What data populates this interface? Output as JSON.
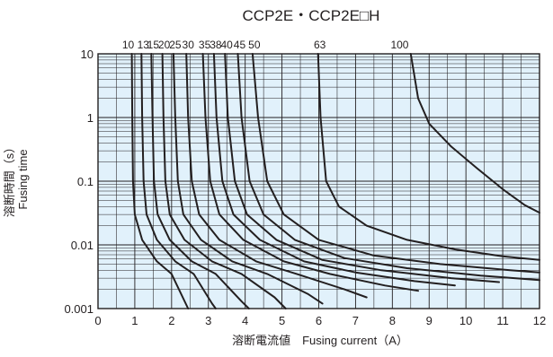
{
  "chart_data": {
    "type": "line",
    "title": "CCP2E・CCP2E□H",
    "xlabel": "溶断電流値　Fusing current（A）",
    "ylabel_ja": "溶断時間（s）",
    "ylabel_en": "Fusing time",
    "xlim": [
      0,
      12
    ],
    "ylim": [
      0.001,
      10
    ],
    "yscale": "log",
    "x_ticks": [
      "0",
      "1",
      "2",
      "3",
      "4",
      "5",
      "6",
      "7",
      "8",
      "9",
      "10",
      "11",
      "12"
    ],
    "y_ticks": [
      "0.001",
      "0.01",
      "0.1",
      "1",
      "10"
    ],
    "grid": true,
    "plot_background": "#e1f1fb",
    "line_color": "#231f20",
    "series": [
      {
        "name": "10",
        "points": [
          [
            0.92,
            10
          ],
          [
            0.93,
            1
          ],
          [
            0.95,
            0.1
          ],
          [
            1.0,
            0.03
          ],
          [
            1.2,
            0.012
          ],
          [
            1.6,
            0.0055
          ],
          [
            2.0,
            0.0035
          ],
          [
            2.45,
            0.001
          ]
        ]
      },
      {
        "name": "13",
        "points": [
          [
            1.18,
            10
          ],
          [
            1.2,
            1
          ],
          [
            1.24,
            0.1
          ],
          [
            1.32,
            0.03
          ],
          [
            1.6,
            0.012
          ],
          [
            2.1,
            0.0055
          ],
          [
            2.6,
            0.0035
          ],
          [
            3.1,
            0.0012
          ],
          [
            3.2,
            0.001
          ]
        ]
      },
      {
        "name": "15",
        "points": [
          [
            1.45,
            10
          ],
          [
            1.48,
            1
          ],
          [
            1.52,
            0.1
          ],
          [
            1.62,
            0.03
          ],
          [
            1.95,
            0.012
          ],
          [
            2.55,
            0.0055
          ],
          [
            3.2,
            0.0035
          ],
          [
            3.9,
            0.0013
          ],
          [
            4.1,
            0.001
          ]
        ]
      },
      {
        "name": "20",
        "points": [
          [
            1.75,
            10
          ],
          [
            1.78,
            1
          ],
          [
            1.83,
            0.1
          ],
          [
            1.95,
            0.03
          ],
          [
            2.35,
            0.012
          ],
          [
            3.1,
            0.0055
          ],
          [
            3.9,
            0.0035
          ],
          [
            4.8,
            0.0015
          ],
          [
            5.1,
            0.001
          ]
        ]
      },
      {
        "name": "25",
        "points": [
          [
            2.05,
            10
          ],
          [
            2.1,
            1
          ],
          [
            2.17,
            0.1
          ],
          [
            2.32,
            0.03
          ],
          [
            2.8,
            0.012
          ],
          [
            3.65,
            0.0055
          ],
          [
            4.6,
            0.0035
          ],
          [
            5.7,
            0.0017
          ],
          [
            6.1,
            0.0012
          ]
        ]
      },
      {
        "name": "30",
        "points": [
          [
            2.4,
            10
          ],
          [
            2.45,
            1
          ],
          [
            2.55,
            0.1
          ],
          [
            2.75,
            0.03
          ],
          [
            3.3,
            0.012
          ],
          [
            4.3,
            0.0055
          ],
          [
            5.4,
            0.0035
          ],
          [
            6.7,
            0.002
          ],
          [
            7.3,
            0.0015
          ]
        ]
      },
      {
        "name": "35",
        "points": [
          [
            2.85,
            10
          ],
          [
            2.92,
            1
          ],
          [
            3.05,
            0.1
          ],
          [
            3.3,
            0.03
          ],
          [
            3.95,
            0.012
          ],
          [
            5.05,
            0.0055
          ],
          [
            6.3,
            0.0035
          ],
          [
            7.8,
            0.0023
          ],
          [
            8.7,
            0.0019
          ]
        ]
      },
      {
        "name": "38",
        "points": [
          [
            3.15,
            10
          ],
          [
            3.22,
            1
          ],
          [
            3.38,
            0.1
          ],
          [
            3.68,
            0.03
          ],
          [
            4.4,
            0.012
          ],
          [
            5.6,
            0.0055
          ],
          [
            7.0,
            0.0037
          ],
          [
            8.6,
            0.0027
          ],
          [
            9.7,
            0.0023
          ]
        ]
      },
      {
        "name": "40",
        "points": [
          [
            3.45,
            10
          ],
          [
            3.53,
            1
          ],
          [
            3.72,
            0.1
          ],
          [
            4.05,
            0.03
          ],
          [
            4.85,
            0.012
          ],
          [
            6.1,
            0.0058
          ],
          [
            7.7,
            0.004
          ],
          [
            9.6,
            0.003
          ],
          [
            10.9,
            0.0026
          ]
        ]
      },
      {
        "name": "45",
        "points": [
          [
            3.8,
            10
          ],
          [
            3.9,
            1
          ],
          [
            4.12,
            0.1
          ],
          [
            4.5,
            0.03
          ],
          [
            5.35,
            0.012
          ],
          [
            6.7,
            0.0062
          ],
          [
            8.4,
            0.0043
          ],
          [
            10.4,
            0.0033
          ],
          [
            12,
            0.0028
          ]
        ]
      },
      {
        "name": "50",
        "points": [
          [
            4.2,
            10
          ],
          [
            4.35,
            1
          ],
          [
            4.6,
            0.1
          ],
          [
            5.05,
            0.03
          ],
          [
            6.0,
            0.012
          ],
          [
            7.5,
            0.0068
          ],
          [
            9.3,
            0.005
          ],
          [
            11.2,
            0.004
          ],
          [
            12,
            0.0037
          ]
        ]
      },
      {
        "name": "63",
        "points": [
          [
            5.98,
            10
          ],
          [
            6.05,
            1
          ],
          [
            6.2,
            0.1
          ],
          [
            6.55,
            0.04
          ],
          [
            7.3,
            0.02
          ],
          [
            8.4,
            0.012
          ],
          [
            9.7,
            0.0085
          ],
          [
            11.0,
            0.0066
          ],
          [
            12,
            0.0058
          ]
        ]
      },
      {
        "name": "100",
        "points": [
          [
            8.5,
            10
          ],
          [
            8.7,
            2
          ],
          [
            9.0,
            0.8
          ],
          [
            9.6,
            0.35
          ],
          [
            10.3,
            0.16
          ],
          [
            11.0,
            0.075
          ],
          [
            11.6,
            0.042
          ],
          [
            12,
            0.032
          ]
        ]
      }
    ]
  }
}
